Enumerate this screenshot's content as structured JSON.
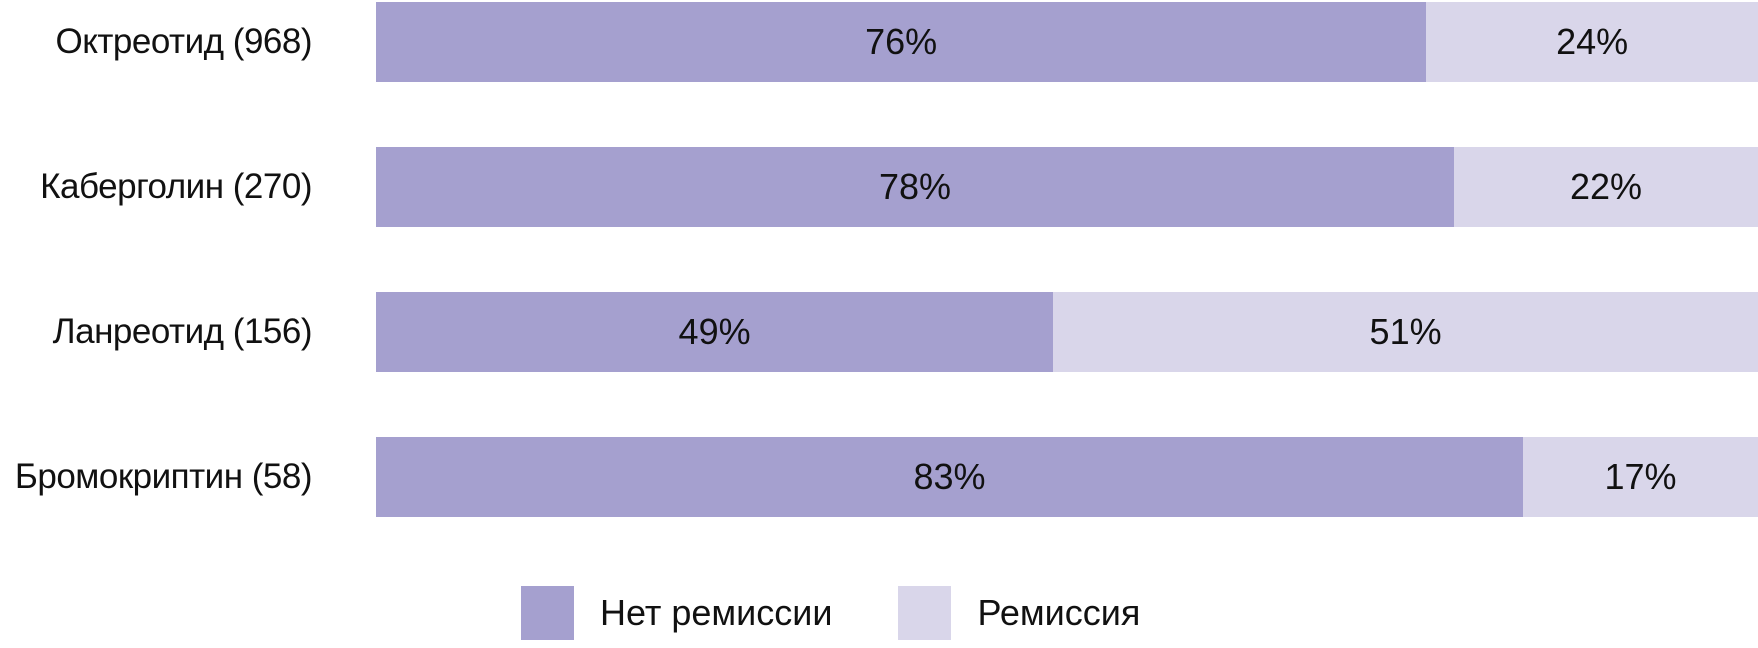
{
  "chart_data": {
    "type": "bar",
    "orientation": "horizontal",
    "stacked": true,
    "title": "",
    "xlabel": "",
    "ylabel": "",
    "xlim": [
      0,
      100
    ],
    "unit": "%",
    "grid": false,
    "legend_position": "bottom",
    "categories": [
      "Октреотид (968)",
      "Каберголин (270)",
      "Ланреотид (156)",
      "Бромокриптин (58)"
    ],
    "series": [
      {
        "name": "Нет ремиссии",
        "color": "#a5a0cf",
        "values": [
          76,
          78,
          49,
          83
        ]
      },
      {
        "name": "Ремиссия",
        "color": "#d9d6ea",
        "values": [
          24,
          22,
          51,
          17
        ]
      }
    ],
    "value_labels": [
      [
        "76%",
        "24%"
      ],
      [
        "78%",
        "22%"
      ],
      [
        "49%",
        "51%"
      ],
      [
        "83%",
        "17%"
      ]
    ],
    "text_color": "#111111",
    "background_color": "#ffffff"
  }
}
